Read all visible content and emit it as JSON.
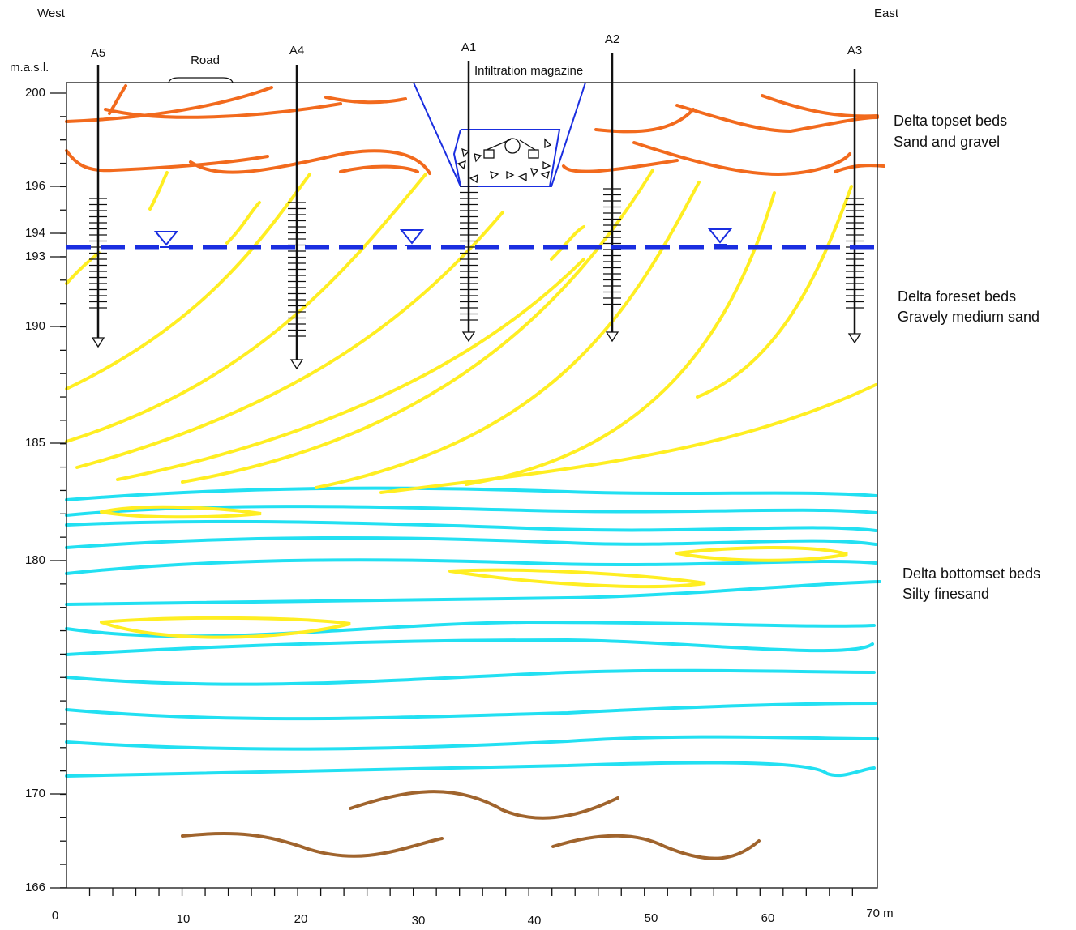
{
  "header": {
    "west": "West",
    "east": "East",
    "y_unit": "m.a.s.l."
  },
  "labels": {
    "road": "Road",
    "magazine": "Infiltration magazine"
  },
  "wells": [
    {
      "name": "A5"
    },
    {
      "name": "A4"
    },
    {
      "name": "A1"
    },
    {
      "name": "A2"
    },
    {
      "name": "A3"
    }
  ],
  "units": [
    {
      "name": "Delta topset beds",
      "material": "Sand and gravel"
    },
    {
      "name": "Delta foreset beds",
      "material": "Gravely medium sand"
    },
    {
      "name": "Delta bottomset beds",
      "material": "Silty finesand"
    }
  ],
  "y_axis": {
    "ticks": [
      "200",
      "196",
      "194",
      "193",
      "190",
      "185",
      "180",
      "170",
      "166"
    ]
  },
  "x_axis": {
    "ticks": [
      "0",
      "10",
      "20",
      "30",
      "40",
      "50",
      "60",
      "70 m"
    ]
  }
}
